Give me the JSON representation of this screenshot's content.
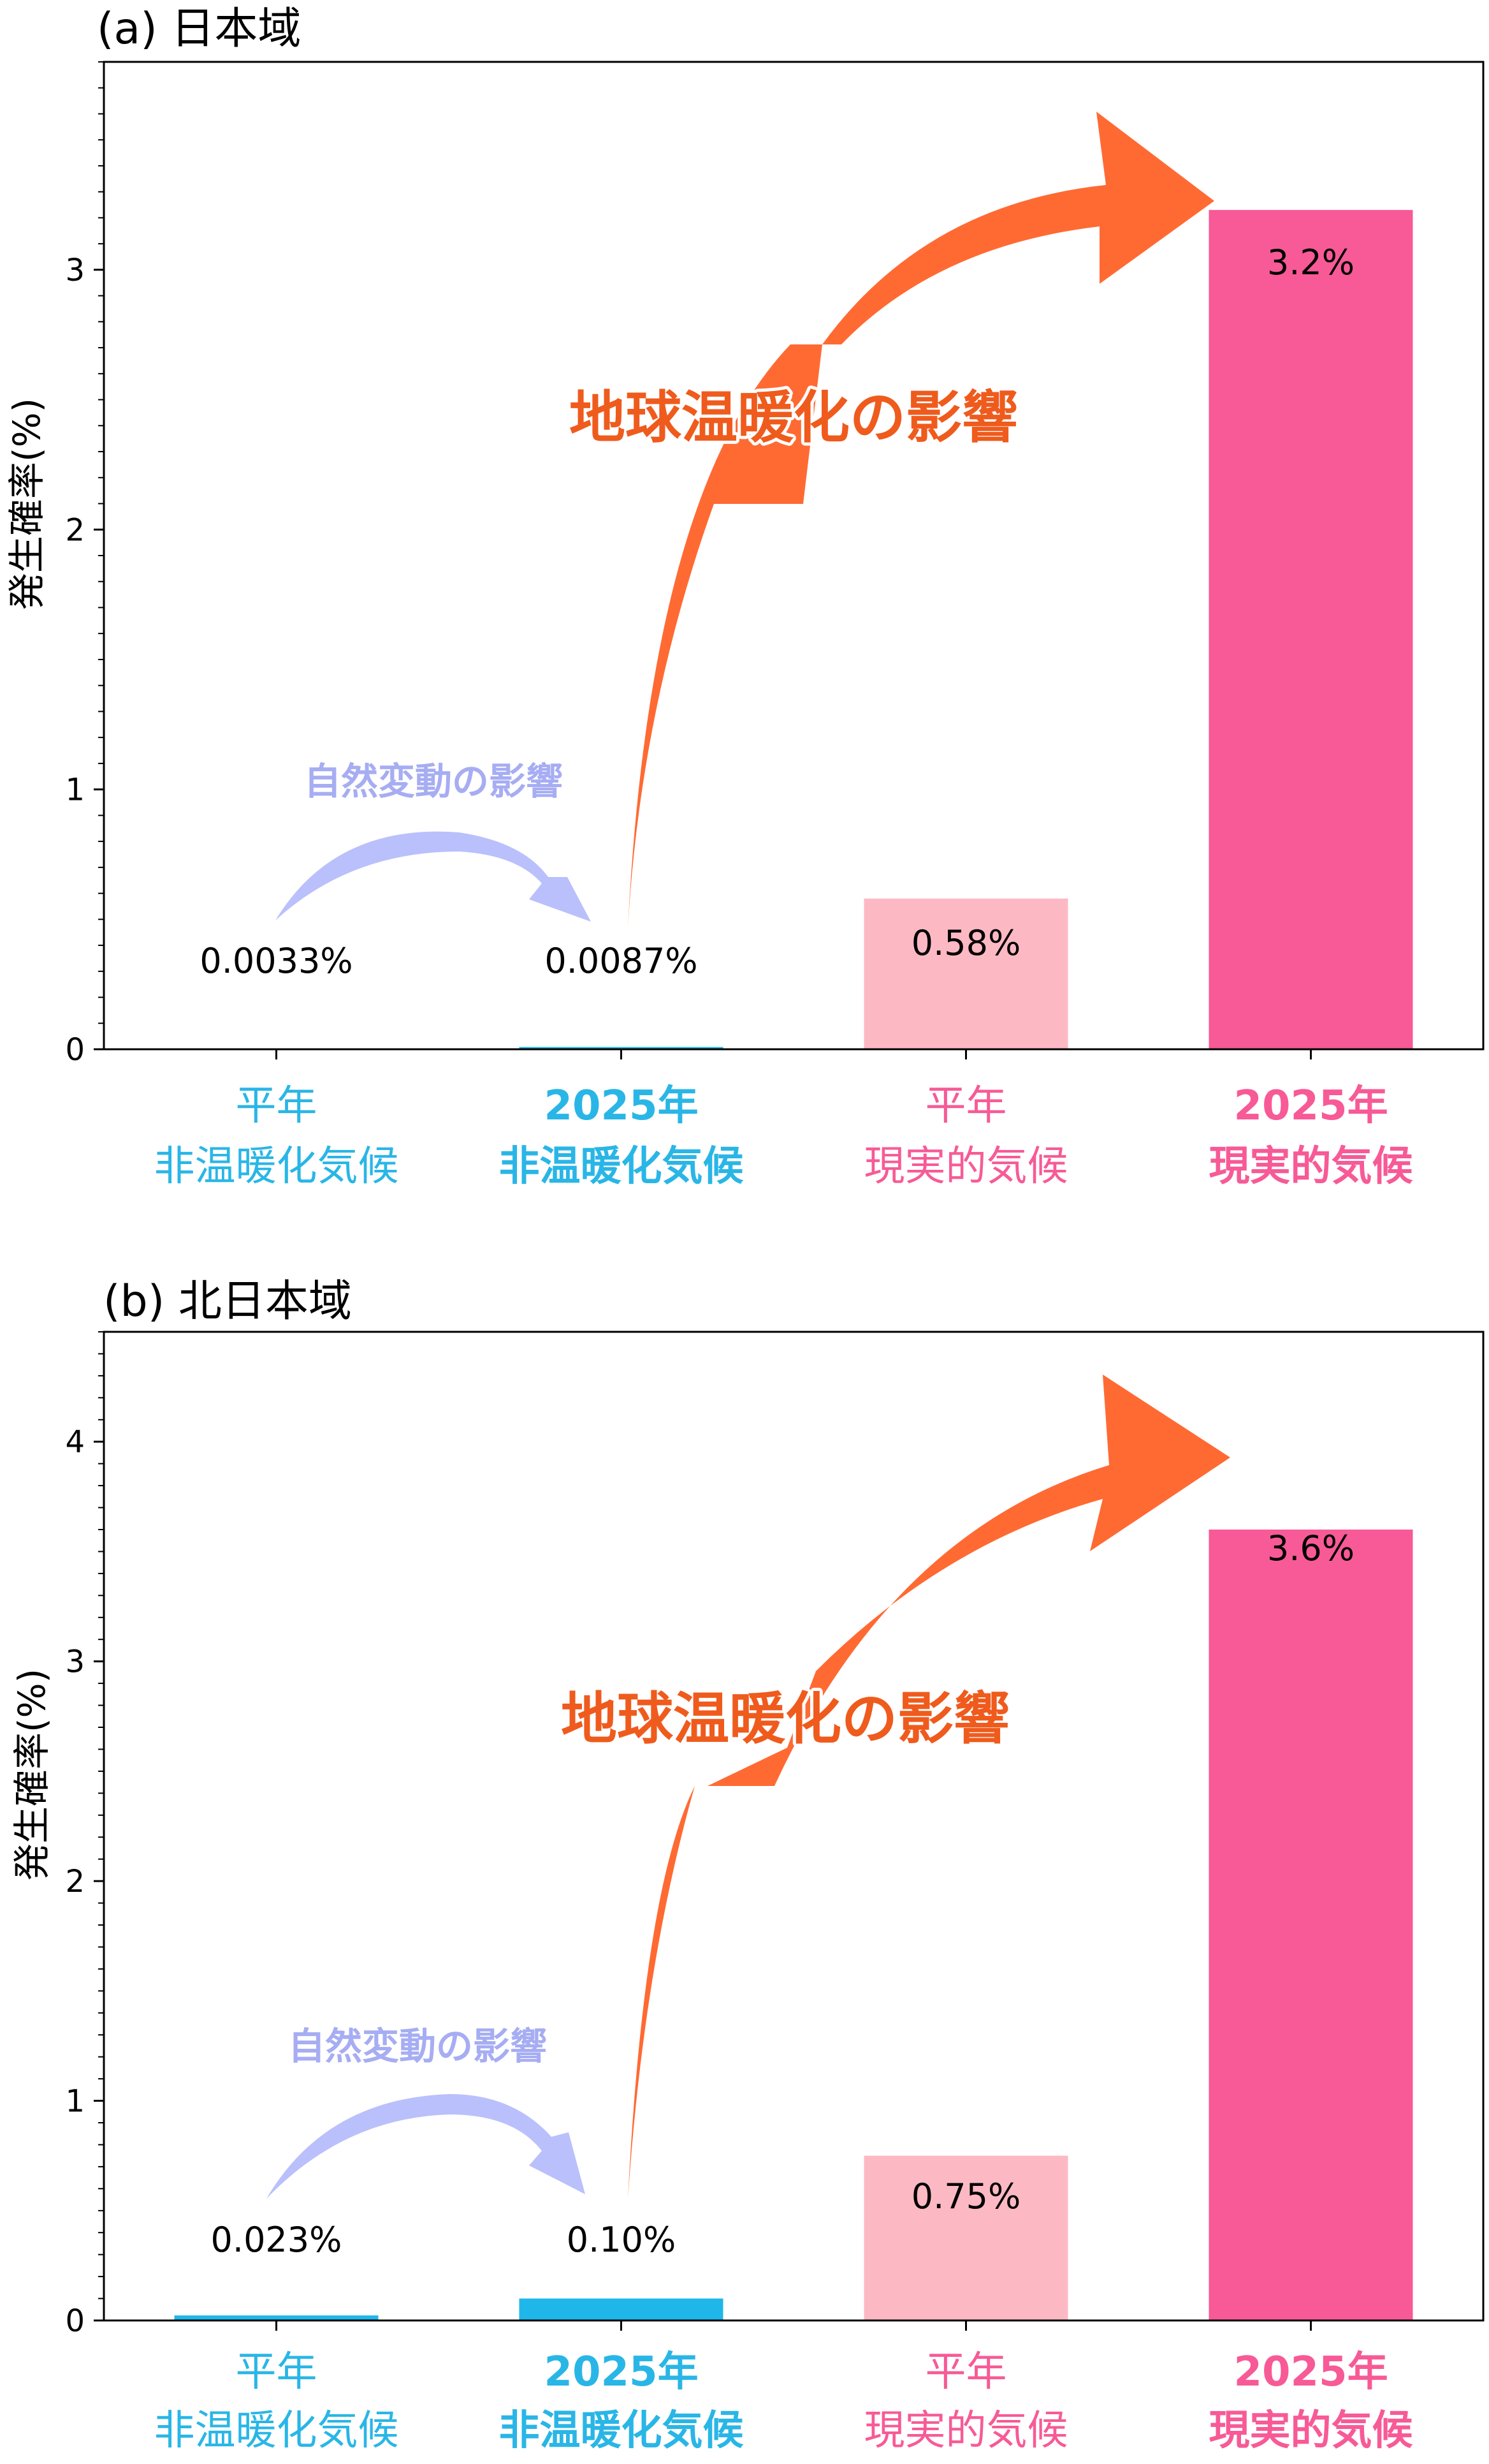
{
  "colors": {
    "cyan": "#1fb7ea",
    "cyan_text": "#29b6e6",
    "light_pink": "#fdb9c3",
    "pink": "#f75a96",
    "pink_text": "#f75a96",
    "orange_arrow": "#ff6a33",
    "orange_text": "#ef5b1d",
    "lavender_arrow": "#b9c0fb",
    "lavender_text": "#a6adf3"
  },
  "chart_data": [
    {
      "type": "bar",
      "title": "(a) 日本域",
      "ylabel": "発生確率(%)",
      "ylim": [
        0,
        3.8
      ],
      "yticks": [
        "0",
        "1",
        "2",
        "3"
      ],
      "categories": [
        {
          "line1": "平年",
          "line2": "非温暖化気候",
          "bold": false,
          "color": "cyan"
        },
        {
          "line1": "2025年",
          "line2": "非温暖化気候",
          "bold": true,
          "color": "cyan"
        },
        {
          "line1": "平年",
          "line2": "現実的気候",
          "bold": false,
          "color": "pink"
        },
        {
          "line1": "2025年",
          "line2": "現実的気候",
          "bold": true,
          "color": "pink"
        }
      ],
      "values": [
        0.0033,
        0.0087,
        0.58,
        3.23
      ],
      "value_labels": [
        "0.0033%",
        "0.0087%",
        "0.58%",
        "3.2%"
      ],
      "annotations": {
        "warming": "地球温暖化の影響",
        "natural": "自然変動の影響"
      }
    },
    {
      "type": "bar",
      "title": "(b) 北日本域",
      "ylabel": "発生確率(%)",
      "ylim": [
        0,
        4.5
      ],
      "yticks": [
        "0",
        "1",
        "2",
        "3",
        "4"
      ],
      "categories": [
        {
          "line1": "平年",
          "line2": "非温暖化気候",
          "bold": false,
          "color": "cyan"
        },
        {
          "line1": "2025年",
          "line2": "非温暖化気候",
          "bold": true,
          "color": "cyan"
        },
        {
          "line1": "平年",
          "line2": "現実的気候",
          "bold": false,
          "color": "pink"
        },
        {
          "line1": "2025年",
          "line2": "現実的気候",
          "bold": true,
          "color": "pink"
        }
      ],
      "values": [
        0.023,
        0.1,
        0.75,
        3.6
      ],
      "value_labels": [
        "0.023%",
        "0.10%",
        "0.75%",
        "3.6%"
      ],
      "annotations": {
        "warming": "地球温暖化の影響",
        "natural": "自然変動の影響"
      }
    }
  ]
}
